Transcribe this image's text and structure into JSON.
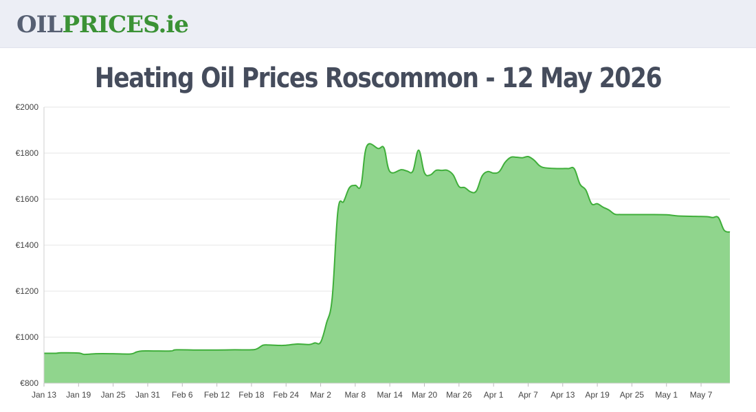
{
  "header": {
    "logo_part1": "OIL",
    "logo_part2": "PRICES",
    "logo_part3": ".ie"
  },
  "page": {
    "title": "Heating Oil Prices Roscommon - 12 May 2026"
  },
  "colors": {
    "line": "#3fae3a",
    "fill": "#90d58d",
    "grid": "#e6e6e6"
  },
  "chart_data": {
    "type": "area",
    "title": "Heating Oil Prices Roscommon - 12 May 2026",
    "xlabel": "",
    "ylabel": "",
    "ylim": [
      800,
      2000
    ],
    "grid": true,
    "yticks": [
      800,
      1000,
      1200,
      1400,
      1600,
      1800,
      2000
    ],
    "ytick_labels": [
      "€800",
      "€1000",
      "€1200",
      "€1400",
      "€1600",
      "€1800",
      "€2000"
    ],
    "xlim": [
      "2026-01-13",
      "2026-05-12"
    ],
    "xtick_labels": [
      "Jan 13",
      "Jan 19",
      "Jan 25",
      "Jan 31",
      "Feb 6",
      "Feb 12",
      "Feb 18",
      "Feb 24",
      "Mar 2",
      "Mar 8",
      "Mar 14",
      "Mar 20",
      "Mar 26",
      "Apr 1",
      "Apr 7",
      "Apr 13",
      "Apr 19",
      "Apr 25",
      "May 1",
      "May 7"
    ],
    "xtick_dates": [
      "2026-01-13",
      "2026-01-19",
      "2026-01-25",
      "2026-01-31",
      "2026-02-06",
      "2026-02-12",
      "2026-02-18",
      "2026-02-24",
      "2026-03-02",
      "2026-03-08",
      "2026-03-14",
      "2026-03-20",
      "2026-03-26",
      "2026-04-01",
      "2026-04-07",
      "2026-04-13",
      "2026-04-19",
      "2026-04-25",
      "2026-05-01",
      "2026-05-07"
    ],
    "series": [
      {
        "x": [
          "2026-01-13",
          "2026-01-15",
          "2026-01-16",
          "2026-01-19",
          "2026-01-20",
          "2026-01-22",
          "2026-01-25",
          "2026-01-28",
          "2026-01-29",
          "2026-01-30",
          "2026-02-01",
          "2026-02-04",
          "2026-02-05",
          "2026-02-09",
          "2026-02-12",
          "2026-02-15",
          "2026-02-18",
          "2026-02-19",
          "2026-02-20",
          "2026-02-21",
          "2026-02-23",
          "2026-02-24",
          "2026-02-26",
          "2026-02-28",
          "2026-03-01",
          "2026-03-02",
          "2026-03-03",
          "2026-03-04",
          "2026-03-05",
          "2026-03-06",
          "2026-03-07",
          "2026-03-08",
          "2026-03-09",
          "2026-03-10",
          "2026-03-12",
          "2026-03-13",
          "2026-03-14",
          "2026-03-16",
          "2026-03-17",
          "2026-03-18",
          "2026-03-19",
          "2026-03-20",
          "2026-03-21",
          "2026-03-22",
          "2026-03-23",
          "2026-03-24",
          "2026-03-25",
          "2026-03-26",
          "2026-03-27",
          "2026-03-28",
          "2026-03-29",
          "2026-03-30",
          "2026-03-31",
          "2026-04-01",
          "2026-04-02",
          "2026-04-03",
          "2026-04-04",
          "2026-04-05",
          "2026-04-06",
          "2026-04-07",
          "2026-04-08",
          "2026-04-09",
          "2026-04-10",
          "2026-04-12",
          "2026-04-13",
          "2026-04-14",
          "2026-04-15",
          "2026-04-16",
          "2026-04-17",
          "2026-04-18",
          "2026-04-19",
          "2026-04-20",
          "2026-04-21",
          "2026-04-22",
          "2026-04-23",
          "2026-04-25",
          "2026-04-28",
          "2026-05-01",
          "2026-05-03",
          "2026-05-06",
          "2026-05-08",
          "2026-05-09",
          "2026-05-10",
          "2026-05-11",
          "2026-05-12"
        ],
        "y": [
          930,
          930,
          932,
          931,
          925,
          928,
          928,
          927,
          935,
          940,
          940,
          940,
          945,
          944,
          944,
          945,
          945,
          950,
          965,
          966,
          964,
          965,
          970,
          968,
          975,
          978,
          1060,
          1170,
          1550,
          1590,
          1650,
          1660,
          1660,
          1830,
          1820,
          1822,
          1720,
          1728,
          1722,
          1722,
          1813,
          1715,
          1705,
          1725,
          1725,
          1725,
          1705,
          1655,
          1650,
          1632,
          1635,
          1700,
          1720,
          1713,
          1720,
          1760,
          1782,
          1782,
          1780,
          1785,
          1770,
          1745,
          1736,
          1733,
          1733,
          1733,
          1732,
          1665,
          1640,
          1580,
          1580,
          1565,
          1553,
          1535,
          1533,
          1533,
          1533,
          1532,
          1527,
          1525,
          1524,
          1520,
          1520,
          1465,
          1457
        ]
      }
    ]
  }
}
